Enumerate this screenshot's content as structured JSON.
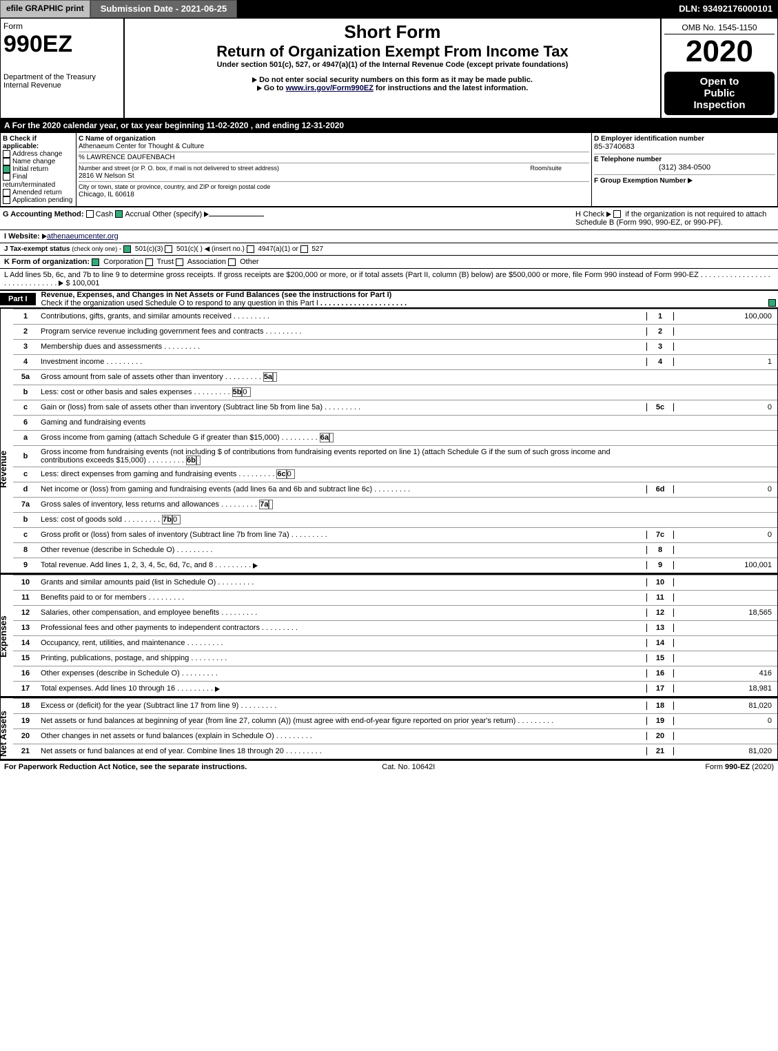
{
  "topbar": {
    "efile": "efile GRAPHIC print",
    "sub_label": "Submission Date - 2021-06-25",
    "dln": "DLN: 93492176000101"
  },
  "header": {
    "form_word": "Form",
    "form_no": "990EZ",
    "short_form": "Short Form",
    "title": "Return of Organization Exempt From Income Tax",
    "subtitle": "Under section 501(c), 527, or 4947(a)(1) of the Internal Revenue Code (except private foundations)",
    "bullet1": "Do not enter social security numbers on this form as it may be made public.",
    "bullet2_pre": "Go to ",
    "bullet2_link": "www.irs.gov/Form990EZ",
    "bullet2_post": " for instructions and the latest information.",
    "dept1": "Department of the Treasury",
    "dept2": "Internal Revenue",
    "omb": "OMB No. 1545-1150",
    "year": "2020",
    "open1": "Open to",
    "open2": "Public",
    "open3": "Inspection"
  },
  "lineA": "For the 2020 calendar year, or tax year beginning 11-02-2020 , and ending 12-31-2020",
  "boxB": {
    "hdr": "B  Check if applicable:",
    "items": [
      "Address change",
      "Name change",
      "Initial return",
      "Final return/terminated",
      "Amended return",
      "Application pending"
    ],
    "checked_idx": 2
  },
  "boxC": {
    "hdr": "C Name of organization",
    "name": "Athenaeum Center for Thought & Culture",
    "care": "% LAWRENCE DAUFENBACH",
    "street_hdr": "Number and street (or P. O. box, if mail is not delivered to street address)",
    "room_hdr": "Room/suite",
    "street": "2816 W Nelson St",
    "city_hdr": "City or town, state or province, country, and ZIP or foreign postal code",
    "city": "Chicago, IL  60618"
  },
  "boxD": {
    "hdr": "D Employer identification number",
    "val": "85-3740683"
  },
  "boxE": {
    "hdr": "E Telephone number",
    "val": "(312) 384-0500"
  },
  "boxF": {
    "hdr": "F Group Exemption Number"
  },
  "lineG": {
    "label": "G Accounting Method:",
    "cash": "Cash",
    "accrual": "Accrual",
    "other": "Other (specify)"
  },
  "lineH": {
    "pre": "H  Check",
    "post": "if the organization is not required to attach Schedule B (Form 990, 990-EZ, or 990-PF)."
  },
  "lineI": {
    "label": "I Website:",
    "link": "athenaeumcenter.org"
  },
  "lineJ": "J Tax-exempt status (check only one) -   501(c)(3)    501(c)(  )  (insert no.)    4947(a)(1) or    527",
  "lineK": {
    "label": "K Form of organization:",
    "opts": [
      "Corporation",
      "Trust",
      "Association",
      "Other"
    ],
    "checked_idx": 0
  },
  "lineL": {
    "text": "L Add lines 5b, 6c, and 7b to line 9 to determine gross receipts. If gross receipts are $200,000 or more, or if total assets (Part II, column (B) below) are $500,000 or more, file Form 990 instead of Form 990-EZ",
    "amt": "$ 100,001"
  },
  "part1": {
    "label": "Part I",
    "title": "Revenue, Expenses, and Changes in Net Assets or Fund Balances (see the instructions for Part I)",
    "sub": "Check if the organization used Schedule O to respond to any question in this Part I"
  },
  "sections": {
    "revenue": "Revenue",
    "expenses": "Expenses",
    "netassets": "Net Assets"
  },
  "lines": {
    "l1": {
      "n": "1",
      "txt": "Contributions, gifts, grants, and similar amounts received",
      "r": "1",
      "v": "100,000"
    },
    "l2": {
      "n": "2",
      "txt": "Program service revenue including government fees and contracts",
      "r": "2",
      "v": ""
    },
    "l3": {
      "n": "3",
      "txt": "Membership dues and assessments",
      "r": "3",
      "v": ""
    },
    "l4": {
      "n": "4",
      "txt": "Investment income",
      "r": "4",
      "v": "1"
    },
    "l5a": {
      "n": "5a",
      "txt": "Gross amount from sale of assets other than inventory",
      "sb": "5a",
      "sv": ""
    },
    "l5b": {
      "n": "b",
      "txt": "Less: cost or other basis and sales expenses",
      "sb": "5b",
      "sv": "0"
    },
    "l5c": {
      "n": "c",
      "txt": "Gain or (loss) from sale of assets other than inventory (Subtract line 5b from line 5a)",
      "r": "5c",
      "v": "0"
    },
    "l6": {
      "n": "6",
      "txt": "Gaming and fundraising events"
    },
    "l6a": {
      "n": "a",
      "txt": "Gross income from gaming (attach Schedule G if greater than $15,000)",
      "sb": "6a",
      "sv": ""
    },
    "l6b": {
      "n": "b",
      "txt": "Gross income from fundraising events (not including $                of contributions from fundraising events reported on line 1) (attach Schedule G if the sum of such gross income and contributions exceeds $15,000)",
      "sb": "6b",
      "sv": ""
    },
    "l6c": {
      "n": "c",
      "txt": "Less: direct expenses from gaming and fundraising events",
      "sb": "6c",
      "sv": "0"
    },
    "l6d": {
      "n": "d",
      "txt": "Net income or (loss) from gaming and fundraising events (add lines 6a and 6b and subtract line 6c)",
      "r": "6d",
      "v": "0"
    },
    "l7a": {
      "n": "7a",
      "txt": "Gross sales of inventory, less returns and allowances",
      "sb": "7a",
      "sv": ""
    },
    "l7b": {
      "n": "b",
      "txt": "Less: cost of goods sold",
      "sb": "7b",
      "sv": "0"
    },
    "l7c": {
      "n": "c",
      "txt": "Gross profit or (loss) from sales of inventory (Subtract line 7b from line 7a)",
      "r": "7c",
      "v": "0"
    },
    "l8": {
      "n": "8",
      "txt": "Other revenue (describe in Schedule O)",
      "r": "8",
      "v": ""
    },
    "l9": {
      "n": "9",
      "txt": "Total revenue. Add lines 1, 2, 3, 4, 5c, 6d, 7c, and 8",
      "r": "9",
      "v": "100,001",
      "arrow": true
    },
    "l10": {
      "n": "10",
      "txt": "Grants and similar amounts paid (list in Schedule O)",
      "r": "10",
      "v": ""
    },
    "l11": {
      "n": "11",
      "txt": "Benefits paid to or for members",
      "r": "11",
      "v": ""
    },
    "l12": {
      "n": "12",
      "txt": "Salaries, other compensation, and employee benefits",
      "r": "12",
      "v": "18,565"
    },
    "l13": {
      "n": "13",
      "txt": "Professional fees and other payments to independent contractors",
      "r": "13",
      "v": ""
    },
    "l14": {
      "n": "14",
      "txt": "Occupancy, rent, utilities, and maintenance",
      "r": "14",
      "v": ""
    },
    "l15": {
      "n": "15",
      "txt": "Printing, publications, postage, and shipping",
      "r": "15",
      "v": ""
    },
    "l16": {
      "n": "16",
      "txt": "Other expenses (describe in Schedule O)",
      "r": "16",
      "v": "416"
    },
    "l17": {
      "n": "17",
      "txt": "Total expenses. Add lines 10 through 16",
      "r": "17",
      "v": "18,981",
      "arrow": true
    },
    "l18": {
      "n": "18",
      "txt": "Excess or (deficit) for the year (Subtract line 17 from line 9)",
      "r": "18",
      "v": "81,020"
    },
    "l19": {
      "n": "19",
      "txt": "Net assets or fund balances at beginning of year (from line 27, column (A)) (must agree with end-of-year figure reported on prior year's return)",
      "r": "19",
      "v": "0"
    },
    "l20": {
      "n": "20",
      "txt": "Other changes in net assets or fund balances (explain in Schedule O)",
      "r": "20",
      "v": ""
    },
    "l21": {
      "n": "21",
      "txt": "Net assets or fund balances at end of year. Combine lines 18 through 20",
      "r": "21",
      "v": "81,020"
    }
  },
  "footer": {
    "left": "For Paperwork Reduction Act Notice, see the separate instructions.",
    "mid": "Cat. No. 10642I",
    "right": "Form 990-EZ (2020)"
  }
}
